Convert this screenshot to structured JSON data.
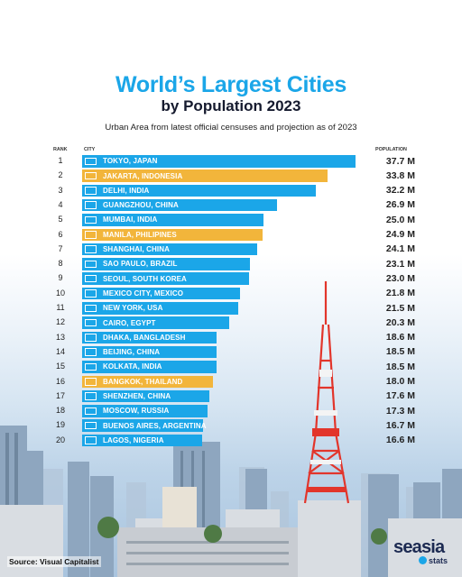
{
  "title": "World’s Largest Cities",
  "subtitle": "by Population 2023",
  "description": "Urban Area from latest official censuses and projection as of 2023",
  "source": "Source: Visual Capitalist",
  "logo": {
    "name": "seasia",
    "sub": "stats"
  },
  "colors": {
    "title": "#1ba6e8",
    "bar": "#1ba6e8",
    "bar_highlight": "#f2b53b"
  },
  "chart_data": {
    "type": "bar",
    "orientation": "horizontal",
    "column_headers": {
      "rank": "RANK",
      "city": "CITY",
      "population": "POPULATION"
    },
    "unit": "M",
    "grid": false,
    "legend": "none",
    "xlim": [
      0,
      37.7
    ],
    "rows": [
      {
        "rank": "1",
        "city": "TOKYO, JAPAN",
        "value": 37.7,
        "label": "37.7 M",
        "flag": "japan",
        "highlight": false
      },
      {
        "rank": "2",
        "city": "JAKARTA, INDONESIA",
        "value": 33.8,
        "label": "33.8 M",
        "flag": "indonesia",
        "highlight": true
      },
      {
        "rank": "3",
        "city": "DELHI, INDIA",
        "value": 32.2,
        "label": "32.2 M",
        "flag": "india",
        "highlight": false
      },
      {
        "rank": "4",
        "city": "GUANGZHOU, CHINA",
        "value": 26.9,
        "label": "26.9 M",
        "flag": "china",
        "highlight": false
      },
      {
        "rank": "5",
        "city": "MUMBAI, INDIA",
        "value": 25.0,
        "label": "25.0 M",
        "flag": "india",
        "highlight": false
      },
      {
        "rank": "6",
        "city": "MANILA, PHILIPINES",
        "value": 24.9,
        "label": "24.9 M",
        "flag": "philippines",
        "highlight": true
      },
      {
        "rank": "7",
        "city": "SHANGHAI, CHINA",
        "value": 24.1,
        "label": "24.1 M",
        "flag": "china",
        "highlight": false
      },
      {
        "rank": "8",
        "city": "SAO PAULO, BRAZIL",
        "value": 23.1,
        "label": "23.1 M",
        "flag": "brazil",
        "highlight": false
      },
      {
        "rank": "9",
        "city": "SEOUL, SOUTH KOREA",
        "value": 23.0,
        "label": "23.0 M",
        "flag": "korea",
        "highlight": false
      },
      {
        "rank": "10",
        "city": "MEXICO CITY, MEXICO",
        "value": 21.8,
        "label": "21.8 M",
        "flag": "mexico",
        "highlight": false
      },
      {
        "rank": "11",
        "city": "NEW YORK, USA",
        "value": 21.5,
        "label": "21.5 M",
        "flag": "usa",
        "highlight": false
      },
      {
        "rank": "12",
        "city": "CAIRO, EGYPT",
        "value": 20.3,
        "label": "20.3 M",
        "flag": "egypt",
        "highlight": false
      },
      {
        "rank": "13",
        "city": "DHAKA, BANGLADESH",
        "value": 18.6,
        "label": "18.6 M",
        "flag": "bangladesh",
        "highlight": false
      },
      {
        "rank": "14",
        "city": "BEIJING, CHINA",
        "value": 18.5,
        "label": "18.5 M",
        "flag": "china",
        "highlight": false
      },
      {
        "rank": "15",
        "city": "KOLKATA, INDIA",
        "value": 18.5,
        "label": "18.5 M",
        "flag": "india",
        "highlight": false
      },
      {
        "rank": "16",
        "city": "BANGKOK, THAILAND",
        "value": 18.0,
        "label": "18.0 M",
        "flag": "thailand",
        "highlight": true
      },
      {
        "rank": "17",
        "city": "SHENZHEN, CHINA",
        "value": 17.6,
        "label": "17.6 M",
        "flag": "china",
        "highlight": false
      },
      {
        "rank": "18",
        "city": "MOSCOW, RUSSIA",
        "value": 17.3,
        "label": "17.3 M",
        "flag": "russia",
        "highlight": false
      },
      {
        "rank": "19",
        "city": "BUENOS AIRES, ARGENTINA",
        "value": 16.7,
        "label": "16.7 M",
        "flag": "argentina",
        "highlight": false
      },
      {
        "rank": "20",
        "city": "LAGOS, NIGERIA",
        "value": 16.6,
        "label": "16.6 M",
        "flag": "nigeria",
        "highlight": false
      }
    ]
  }
}
